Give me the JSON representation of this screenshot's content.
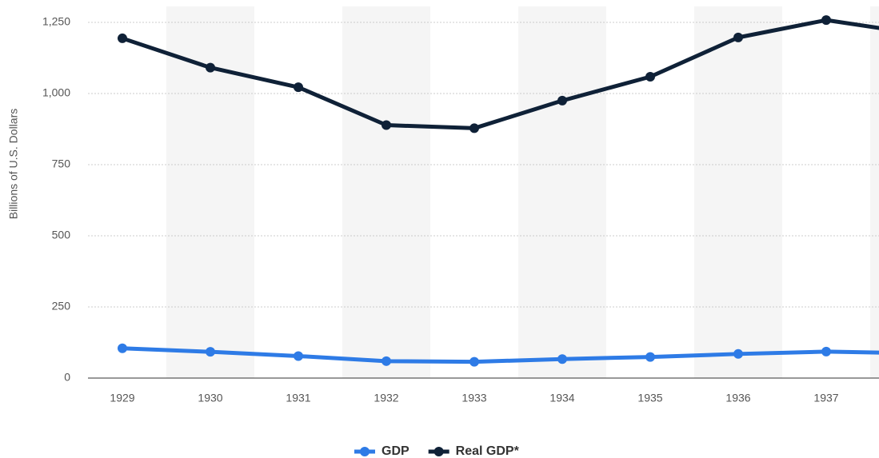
{
  "chart_data": {
    "type": "line",
    "y_label": "Billions of U.S. Dollars",
    "categories": [
      "1929",
      "1930",
      "1931",
      "1932",
      "1933",
      "1934",
      "1935",
      "1936",
      "1937",
      null
    ],
    "series": [
      {
        "name": "GDP",
        "color": "#2e7be6",
        "values": [
          104.6,
          92.2,
          77.4,
          59.5,
          57.2,
          66.8,
          74.2,
          84.8,
          93,
          87.4
        ]
      },
      {
        "name": "Real GDP*",
        "color": "#0f2137",
        "values": [
          1194,
          1091,
          1022,
          889,
          878,
          975,
          1059,
          1197,
          1258,
          1212
        ]
      }
    ],
    "ylim": [
      0,
      1250
    ],
    "yticks": [
      0,
      250,
      500,
      750,
      {
        "value": 1000,
        "label": "1,000"
      },
      {
        "value": 1250,
        "label": "1,250"
      }
    ],
    "grid": true,
    "legend": "bottom"
  }
}
